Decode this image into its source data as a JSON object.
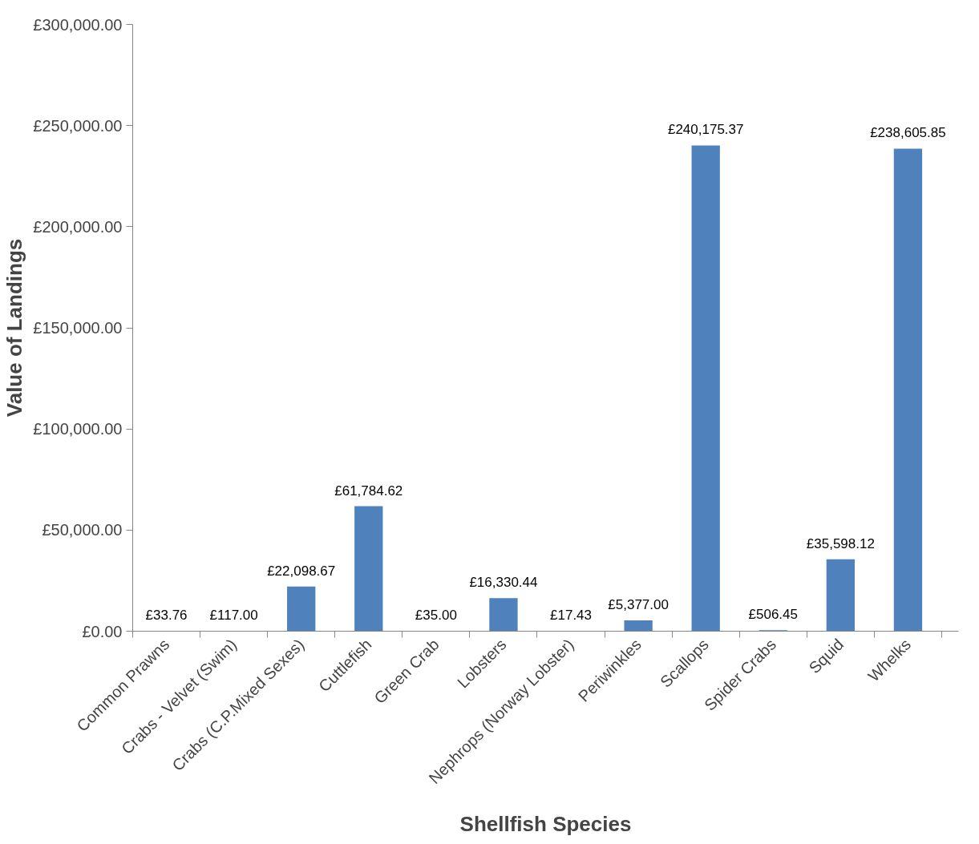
{
  "chart_data": {
    "type": "bar",
    "xlabel": "Shellfish Species",
    "ylabel": "Value of Landings",
    "categories": [
      "Common Prawns",
      "Crabs - Velvet (Swim)",
      "Crabs (C.P.Mixed Sexes)",
      "Cuttlefish",
      "Green Crab",
      "Lobsters",
      "Nephrops (Norway Lobster)",
      "Periwinkles",
      "Scallops",
      "Spider Crabs",
      "Squid",
      "Whelks"
    ],
    "values": [
      33.76,
      117.0,
      22098.67,
      61784.62,
      35.0,
      16330.44,
      17.43,
      5377.0,
      240175.37,
      506.45,
      35598.12,
      238605.85
    ],
    "value_labels": [
      "£33.76",
      "£117.00",
      "£22,098.67",
      "£61,784.62",
      "£35.00",
      "£16,330.44",
      "£17.43",
      "£5,377.00",
      "£240,175.37",
      "£506.45",
      "£35,598.12",
      "£238,605.85"
    ],
    "color": "#4f81bd",
    "ylim": [
      0,
      300000
    ],
    "yticks": [
      {
        "value": 0,
        "label": "£0.00"
      },
      {
        "value": 50000,
        "label": "£50,000.00"
      },
      {
        "value": 100000,
        "label": "£100,000.00"
      },
      {
        "value": 150000,
        "label": "£150,000.00"
      },
      {
        "value": 200000,
        "label": "£200,000.00"
      },
      {
        "value": 250000,
        "label": "£250,000.00"
      },
      {
        "value": 300000,
        "label": "£300,000.00"
      }
    ],
    "grid": false
  }
}
